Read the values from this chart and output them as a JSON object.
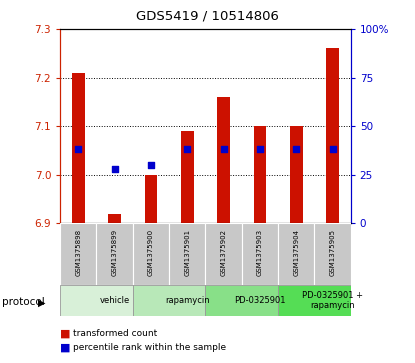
{
  "title": "GDS5419 / 10514806",
  "samples": [
    "GSM1375898",
    "GSM1375899",
    "GSM1375900",
    "GSM1375901",
    "GSM1375902",
    "GSM1375903",
    "GSM1375904",
    "GSM1375905"
  ],
  "bar_values": [
    7.21,
    6.92,
    7.0,
    7.09,
    7.16,
    7.1,
    7.1,
    7.26
  ],
  "bar_bottom": 6.9,
  "pct_right": [
    38,
    28,
    30,
    38,
    38,
    38,
    38,
    38
  ],
  "ylim_left": [
    6.9,
    7.3
  ],
  "ylim_right": [
    0,
    100
  ],
  "yticks_left": [
    6.9,
    7.0,
    7.1,
    7.2,
    7.3
  ],
  "yticks_right": [
    0,
    25,
    50,
    75,
    100
  ],
  "ytick_labels_right": [
    "0",
    "25",
    "50",
    "75",
    "100%"
  ],
  "protocols": [
    {
      "label": "vehicle",
      "span": [
        0,
        2
      ]
    },
    {
      "label": "rapamycin",
      "span": [
        2,
        4
      ]
    },
    {
      "label": "PD-0325901",
      "span": [
        4,
        6
      ]
    },
    {
      "label": "PD-0325901 +\nrapamycin",
      "span": [
        6,
        8
      ]
    }
  ],
  "protocol_colors": [
    "#d8f0d8",
    "#b8e8b8",
    "#88e088",
    "#55dd55"
  ],
  "bar_color": "#cc1100",
  "percentile_color": "#0000cc",
  "bg_color": "#ffffff",
  "sample_bg_color": "#c8c8c8"
}
